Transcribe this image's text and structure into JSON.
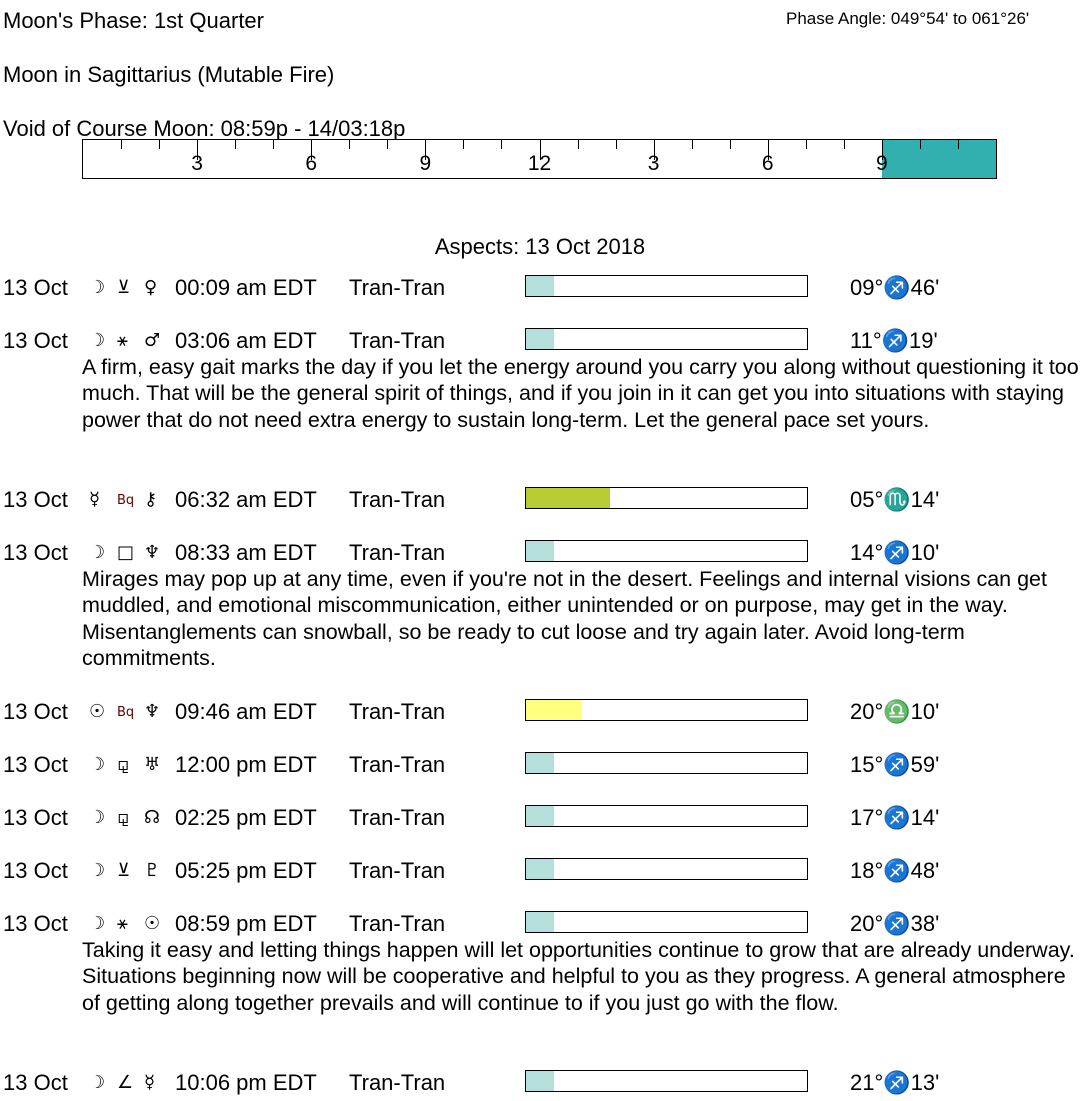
{
  "header": {
    "phase_label": "Moon's Phase:  1st Quarter",
    "phase_angle": "Phase Angle:  049°54' to 061°26'",
    "moon_sign": "Moon in Sagittarius   (Mutable Fire)",
    "void_label": "Void of Course Moon:  08:59p - 14/03:18p"
  },
  "ruler": {
    "labels": [
      "3",
      "6",
      "9",
      "12",
      "3",
      "6",
      "9"
    ],
    "void_start_hour": 21,
    "void_color": "#32b0b0"
  },
  "aspects_title": "Aspects: 13 Oct 2018",
  "aspects": [
    {
      "date": "13 Oct",
      "p1": "☽",
      "aspect": "⊻",
      "p2": "♀",
      "time": "00:09 am EDT",
      "type": "Tran-Tran",
      "strength": 0.1,
      "color": "#b4dfdb",
      "position": "09°♐46'",
      "desc": ""
    },
    {
      "date": "13 Oct",
      "p1": "☽",
      "aspect": "⚹",
      "p2": "♂",
      "time": "03:06 am EDT",
      "type": "Tran-Tran",
      "strength": 0.1,
      "color": "#b4dfdb",
      "position": "11°♐19'",
      "desc": "A firm, easy gait marks the day if you let the energy around you carry you along without questioning it too much. That will be the general spirit of things, and if you join in it can get you into situations with staying power that do not need extra energy to sustain long-term. Let the general pace set yours."
    },
    {
      "date": "13 Oct",
      "p1": "☿",
      "aspect": "Bq",
      "p2": "⚷",
      "time": "06:32 am EDT",
      "type": "Tran-Tran",
      "strength": 0.3,
      "color": "#b6cc32",
      "position": "05°♏14'",
      "desc": ""
    },
    {
      "date": "13 Oct",
      "p1": "☽",
      "aspect": "□",
      "p2": "♆",
      "time": "08:33 am EDT",
      "type": "Tran-Tran",
      "strength": 0.1,
      "color": "#b4dfdb",
      "position": "14°♐10'",
      "desc": "Mirages may pop up at any time, even if you're not in the desert. Feelings and internal visions can get muddled, and emotional miscommunication, either unintended or on purpose, may get in the way. Misentanglements can snowball, so be ready to cut loose and try again later. Avoid long-term commitments."
    },
    {
      "date": "13 Oct",
      "p1": "☉",
      "aspect": "Bq",
      "p2": "♆",
      "time": "09:46 am EDT",
      "type": "Tran-Tran",
      "strength": 0.2,
      "color": "#ffff80",
      "position": "20°♎10'",
      "desc": ""
    },
    {
      "date": "13 Oct",
      "p1": "☽",
      "aspect": "⚼",
      "p2": "♅",
      "time": "12:00 pm EDT",
      "type": "Tran-Tran",
      "strength": 0.1,
      "color": "#b4dfdb",
      "position": "15°♐59'",
      "desc": ""
    },
    {
      "date": "13 Oct",
      "p1": "☽",
      "aspect": "⚼",
      "p2": "☊",
      "time": "02:25 pm EDT",
      "type": "Tran-Tran",
      "strength": 0.1,
      "color": "#b4dfdb",
      "position": "17°♐14'",
      "desc": ""
    },
    {
      "date": "13 Oct",
      "p1": "☽",
      "aspect": "⊻",
      "p2": "♇",
      "time": "05:25 pm EDT",
      "type": "Tran-Tran",
      "strength": 0.1,
      "color": "#b4dfdb",
      "position": "18°♐48'",
      "desc": ""
    },
    {
      "date": "13 Oct",
      "p1": "☽",
      "aspect": "⚹",
      "p2": "☉",
      "time": "08:59 pm EDT",
      "type": "Tran-Tran",
      "strength": 0.1,
      "color": "#b4dfdb",
      "position": "20°♐38'",
      "desc": "Taking it easy and letting things happen will let opportunities continue to grow that are already underway. Situations beginning now will be cooperative and helpful to you as they progress. A general atmosphere of getting along together prevails and will continue to if you just go with the flow."
    },
    {
      "date": "13 Oct",
      "p1": "☽",
      "aspect": "∠",
      "p2": "☿",
      "time": "10:06 pm EDT",
      "type": "Tran-Tran",
      "strength": 0.1,
      "color": "#b4dfdb",
      "position": "21°♐13'",
      "desc": ""
    }
  ]
}
